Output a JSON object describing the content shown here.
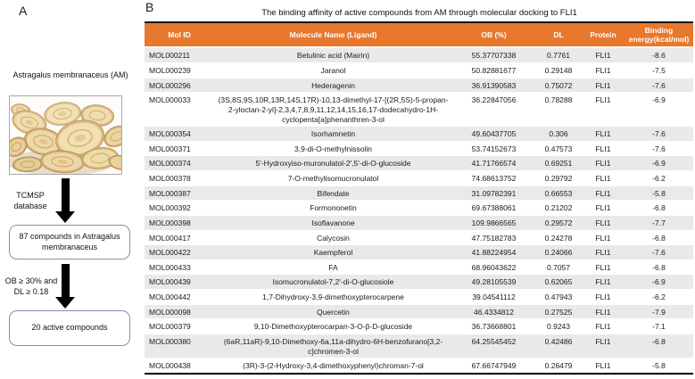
{
  "panel_a": {
    "label": "A",
    "plant_name": "Astragalus membranaceus (AM)",
    "photo_icon": "astragalus-root-slices-photo",
    "flow": {
      "step1_label": "TCMSP database",
      "box1_text": "87 compounds in Astragalus membranaceus",
      "step2_label": "OB ≥ 30% and DL ≥ 0.18",
      "box2_text": "20 active compounds"
    }
  },
  "panel_b": {
    "label": "B",
    "table_title": "The binding affinity of  active compounds from AM through molecular docking to FLI1",
    "table": {
      "columns": [
        "Mol ID",
        "Molecule Name (Ligand)",
        "OB (%)",
        "DL",
        "Protein",
        "Binding energy(kcal/mol)"
      ],
      "rows": [
        [
          "MOL000211",
          "Betulinic acid  (Mairin)",
          "55.37707338",
          "0.7761",
          "FLI1",
          "-8.6"
        ],
        [
          "MOL000239",
          "Jaranol",
          "50.82881677",
          "0.29148",
          "FLI1",
          "-7.5"
        ],
        [
          "MOL000296",
          "Hederagenin",
          "36.91390583",
          "0.75072",
          "FLI1",
          "-7.6"
        ],
        [
          "MOL000033",
          "(3S,8S,9S,10R,13R,14S,17R)-10,13-dimethyl-17-[(2R,5S)-5-propan-2-yloctan-2-yl]-2,3,4,7,8,9,11,12,14,15,16,17-dodecahydro-1H-cyclopenta[a]phenanthren-3-ol",
          "36.22847056",
          "0.78288",
          "FLI1",
          "-6.9"
        ],
        [
          "MOL000354",
          "Isorhamnetin",
          "49.60437705",
          "0.306",
          "FLI1",
          "-7.6"
        ],
        [
          "MOL000371",
          "3,9-di-O-methylnissolin",
          "53.74152673",
          "0.47573",
          "FLI1",
          "-7.6"
        ],
        [
          "MOL000374",
          "5'-Hydroxyiso-muronulatol-2',5'-di-O-glucoside",
          "41.71766574",
          "0.69251",
          "FLI1",
          "-6.9"
        ],
        [
          "MOL000378",
          "7-O-methylisomucronulatol",
          "74.68613752",
          "0.29792",
          "FLI1",
          "-6.2"
        ],
        [
          "MOL000387",
          "Bifendate",
          "31.09782391",
          "0.66553",
          "FLI1",
          "-5.8"
        ],
        [
          "MOL000392",
          "Formononetin",
          "69.67388061",
          "0.21202",
          "FLI1",
          "-6.8"
        ],
        [
          "MOL000398",
          "Isoflavanone",
          "109.9866565",
          "0.29572",
          "FLI1",
          "-7.7"
        ],
        [
          "MOL000417",
          "Calycosin",
          "47.75182783",
          "0.24278",
          "FLI1",
          "-6.8"
        ],
        [
          "MOL000422",
          "Kaempferol",
          "41.88224954",
          "0.24066",
          "FLI1",
          "-7.6"
        ],
        [
          "MOL000433",
          "FA",
          "68.96043622",
          "0.7057",
          "FLI1",
          "-6.8"
        ],
        [
          "MOL000439",
          "Isomucronulatol-7,2'-di-O-glucosiole",
          "49.28105539",
          "0.62065",
          "FLI1",
          "-6.9"
        ],
        [
          "MOL000442",
          "1,7-Dihydroxy-3,9-dimethoxypterocarpene",
          "39.04541112",
          "0.47943",
          "FLI1",
          "-6.2"
        ],
        [
          "MOL000098",
          "Quercetin",
          "46.4334812",
          "0.27525",
          "FLI1",
          "-7.9"
        ],
        [
          "MOL000379",
          "9,10-Dimethoxypterocarpan-3-O-β-D-glucoside",
          "36.73668801",
          "0.9243",
          "FLI1",
          "-7.1"
        ],
        [
          "MOL000380",
          "(6aR,11aR)-9,10-Dimethoxy-6a,11a-dihydro-6H-benzofurano[3,2-c]chromen-3-ol",
          "64.25545452",
          "0.42486",
          "FLI1",
          "-6.8"
        ],
        [
          "MOL000438",
          "(3R)-3-(2-Hydroxy-3,4-dimethoxyphenyl)chroman-7-ol",
          "67.66747949",
          "0.26479",
          "FLI1",
          "-5.8"
        ]
      ]
    }
  },
  "colors": {
    "header_orange": "#E7782D",
    "stripe_gray": "#E9E9E9",
    "flow_box_border": "#7E94AC",
    "arrow_black": "#000000"
  }
}
